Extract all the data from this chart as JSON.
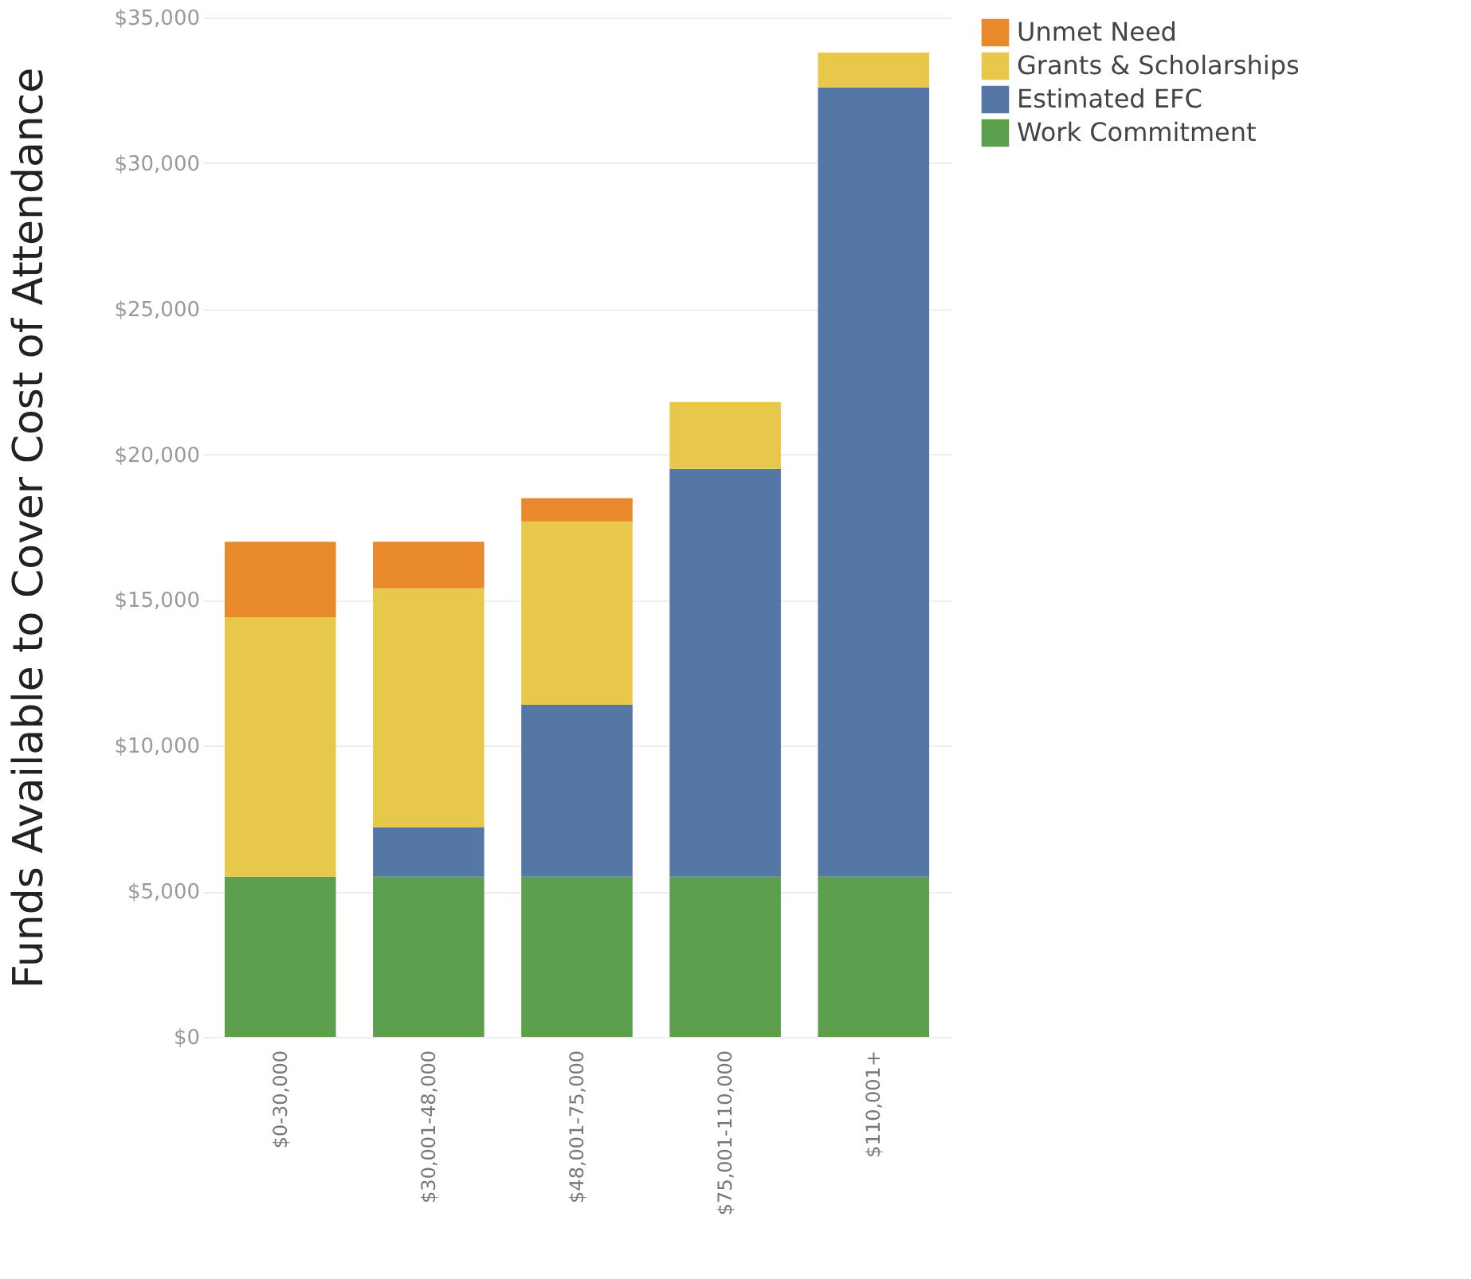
{
  "chart_data": {
    "type": "bar",
    "stacked": true,
    "ylabel": "Funds Available to Cover Cost of Attendance",
    "categories": [
      "$0-30,000",
      "$30,001-48,000",
      "$48,001-75,000",
      "$75,001-110,000",
      "$110,001+"
    ],
    "series": [
      {
        "name": "Work Commitment",
        "color": "#5ca04e",
        "values": [
          5500,
          5500,
          5500,
          5500,
          5500
        ]
      },
      {
        "name": "Estimated EFC",
        "color": "#5577a5",
        "values": [
          0,
          1700,
          5900,
          14000,
          27100
        ]
      },
      {
        "name": "Grants & Scholarships",
        "color": "#e8c84a",
        "values": [
          8900,
          8200,
          6300,
          2300,
          1200
        ]
      },
      {
        "name": "Unmet Need",
        "color": "#e8892b",
        "values": [
          2600,
          1600,
          800,
          0,
          0
        ]
      }
    ],
    "ylim": [
      0,
      35000
    ],
    "yticks": [
      {
        "value": 0,
        "label": "$0"
      },
      {
        "value": 5000,
        "label": "$5,000"
      },
      {
        "value": 10000,
        "label": "$10,000"
      },
      {
        "value": 15000,
        "label": "$15,000"
      },
      {
        "value": 20000,
        "label": "$20,000"
      },
      {
        "value": 25000,
        "label": "$25,000"
      },
      {
        "value": 30000,
        "label": "$30,000"
      },
      {
        "value": 35000,
        "label": "$35,000"
      }
    ],
    "grid": "y",
    "legend": "right"
  }
}
